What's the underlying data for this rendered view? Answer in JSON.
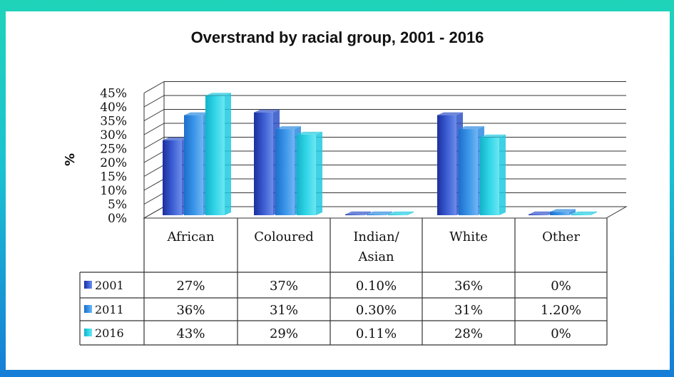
{
  "chart_data": {
    "type": "bar",
    "title": "Overstrand by racial group, 2001 - 2016",
    "ylabel": "%",
    "xlabel": "",
    "ylim": [
      0,
      45
    ],
    "yticks": [
      "0%",
      "5%",
      "10%",
      "15%",
      "20%",
      "25%",
      "30%",
      "35%",
      "40%",
      "45%"
    ],
    "categories": [
      "African",
      "Coloured",
      "Indian/ Asian",
      "White",
      "Other"
    ],
    "series": [
      {
        "name": "2001",
        "color": "#2f52c8",
        "values": [
          27,
          37,
          0.1,
          36,
          0
        ],
        "labels": [
          "27%",
          "37%",
          "0.10%",
          "36%",
          "0%"
        ]
      },
      {
        "name": "2011",
        "color": "#2e8be0",
        "values": [
          36,
          31,
          0.3,
          31,
          1.2
        ],
        "labels": [
          "36%",
          "31%",
          "0.30%",
          "31%",
          "1.20%"
        ]
      },
      {
        "name": "2016",
        "color": "#1ec9e0",
        "values": [
          43,
          29,
          0.11,
          28,
          0
        ],
        "labels": [
          "43%",
          "29%",
          "0.11%",
          "28%",
          "0%"
        ]
      }
    ],
    "grid": true,
    "legend": "data table"
  }
}
